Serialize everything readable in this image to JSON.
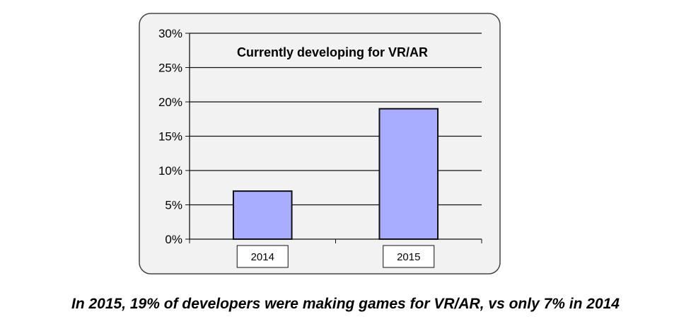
{
  "chart_data": {
    "type": "bar",
    "title": "Currently developing for VR/AR",
    "categories": [
      "2014",
      "2015"
    ],
    "values": [
      7,
      19
    ],
    "ylim": [
      0,
      30
    ],
    "yticks": [
      0,
      5,
      10,
      15,
      20,
      25,
      30
    ],
    "ytick_labels": [
      "0%",
      "5%",
      "10%",
      "15%",
      "20%",
      "25%",
      "30%"
    ],
    "xlabel": "",
    "ylabel": "",
    "grid": true,
    "legend": "none",
    "bar_color": "#a9adff",
    "bar_edge_color": "#111111"
  },
  "caption": "In 2015, 19% of developers were making games for VR/AR, vs only 7% in 2014"
}
